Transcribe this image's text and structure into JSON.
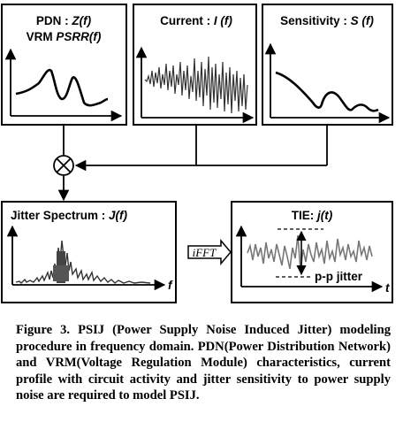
{
  "panels": {
    "pdn": {
      "title_prefix": "PDN : ",
      "title_var": "Z(f)",
      "subtitle_prefix": "VRM ",
      "subtitle_var": "PSRR(f)"
    },
    "current": {
      "title_prefix": "Current : ",
      "title_var": "I (f)"
    },
    "sensitivity": {
      "title_prefix": "Sensitivity : ",
      "title_var": "S (f)"
    },
    "jitter_spectrum": {
      "title": "Jitter Spectrum : ",
      "title_var": "J(f)",
      "axis_label": "f"
    },
    "tie": {
      "title": "TIE: ",
      "title_var": "j(t)",
      "axis_label": "t",
      "annotation": "p-p jitter"
    }
  },
  "operators": {
    "multiply": "⊗",
    "ifft": "iFFT"
  },
  "caption": "Figure 3. PSIJ (Power Supply Noise Induced Jitter) modeling procedure in frequency domain. PDN(Power Distribution Network) and VRM(Voltage Regulation Module) characteristics, current profile with circuit activity and jitter sensitivity to power supply noise are required to model PSIJ."
}
